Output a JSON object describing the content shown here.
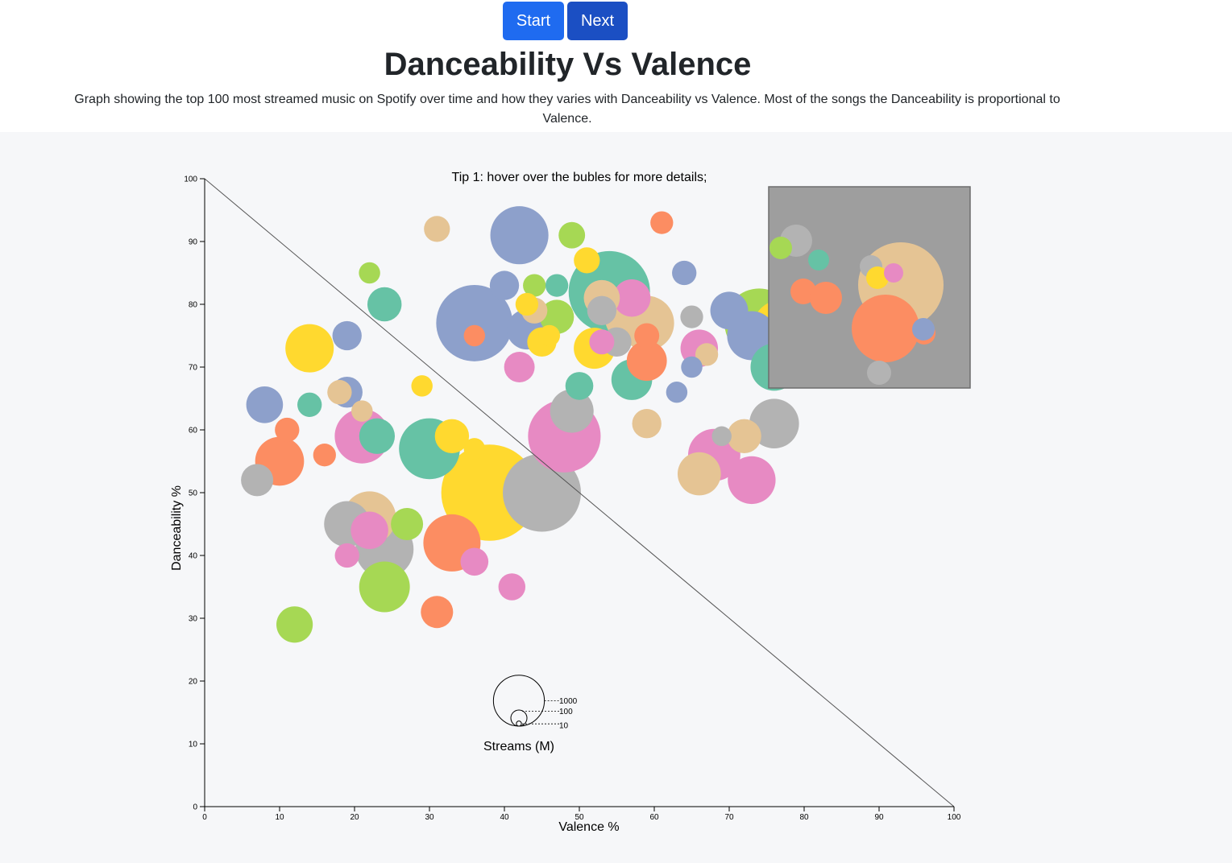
{
  "header": {
    "start_label": "Start",
    "next_label": "Next",
    "title": "Danceability Vs Valence",
    "description": "Graph showing the top 100 most streamed music on Spotify over time and how they varies with Danceability vs Valence. Most of the songs the Danceability is proportional to Valence."
  },
  "chart_data": {
    "type": "scatter",
    "tip": "Tip 1: hover over the bubles for more details;",
    "xlabel": "Valence %",
    "ylabel": "Danceability %",
    "xlim": [
      0,
      100
    ],
    "ylim": [
      0,
      100
    ],
    "x_ticks": [
      "0",
      "10",
      "20",
      "30",
      "40",
      "50",
      "60",
      "70",
      "80",
      "90",
      "100"
    ],
    "y_ticks": [
      "0",
      "10",
      "20",
      "30",
      "40",
      "50",
      "60",
      "70",
      "80",
      "90",
      "100"
    ],
    "size_legend": {
      "title": "Streams (M)",
      "values": [
        1000,
        100,
        10
      ]
    },
    "reference_line": {
      "from": [
        0,
        100
      ],
      "to": [
        100,
        0
      ]
    },
    "colors": [
      "#fc8d62",
      "#e78ac3",
      "#66c2a5",
      "#8da0cb",
      "#a6d854",
      "#ffd92f",
      "#e5c494",
      "#b3b3b3"
    ],
    "points": [
      {
        "x": 31,
        "y": 92,
        "streams": 260,
        "c": 6
      },
      {
        "x": 42,
        "y": 91,
        "streams": 1300,
        "c": 3
      },
      {
        "x": 49,
        "y": 91,
        "streams": 270,
        "c": 4
      },
      {
        "x": 61,
        "y": 93,
        "streams": 200,
        "c": 0
      },
      {
        "x": 22,
        "y": 85,
        "streams": 175,
        "c": 4
      },
      {
        "x": 51,
        "y": 87,
        "streams": 260,
        "c": 5
      },
      {
        "x": 24,
        "y": 80,
        "streams": 450,
        "c": 2
      },
      {
        "x": 40,
        "y": 83,
        "streams": 330,
        "c": 3
      },
      {
        "x": 44,
        "y": 83,
        "streams": 200,
        "c": 4
      },
      {
        "x": 47,
        "y": 83,
        "streams": 200,
        "c": 2
      },
      {
        "x": 64,
        "y": 85,
        "streams": 230,
        "c": 3
      },
      {
        "x": 54,
        "y": 82,
        "streams": 2550,
        "c": 2
      },
      {
        "x": 53,
        "y": 81,
        "streams": 500,
        "c": 6
      },
      {
        "x": 43,
        "y": 80,
        "streams": 200,
        "c": 5
      },
      {
        "x": 36,
        "y": 77,
        "streams": 2250,
        "c": 3
      },
      {
        "x": 43,
        "y": 76,
        "streams": 620,
        "c": 3
      },
      {
        "x": 47,
        "y": 78,
        "streams": 450,
        "c": 4
      },
      {
        "x": 44,
        "y": 79,
        "streams": 260,
        "c": 6
      },
      {
        "x": 53,
        "y": 79,
        "streams": 330,
        "c": 7
      },
      {
        "x": 59,
        "y": 77,
        "streams": 1150,
        "c": 6
      },
      {
        "x": 57,
        "y": 78,
        "streams": 1130,
        "c": 6
      },
      {
        "x": 57,
        "y": 81,
        "streams": 540,
        "c": 1
      },
      {
        "x": 65,
        "y": 78,
        "streams": 200,
        "c": 7
      },
      {
        "x": 70,
        "y": 79,
        "streams": 550,
        "c": 3
      },
      {
        "x": 73,
        "y": 75,
        "streams": 930,
        "c": 3
      },
      {
        "x": 74,
        "y": 77,
        "streams": 1850,
        "c": 4
      },
      {
        "x": 77,
        "y": 76,
        "streams": 1350,
        "c": 5
      },
      {
        "x": 19,
        "y": 75,
        "streams": 330,
        "c": 3
      },
      {
        "x": 14,
        "y": 73,
        "streams": 900,
        "c": 5
      },
      {
        "x": 36,
        "y": 75,
        "streams": 175,
        "c": 0
      },
      {
        "x": 45,
        "y": 74,
        "streams": 330,
        "c": 5
      },
      {
        "x": 46,
        "y": 75,
        "streams": 175,
        "c": 5
      },
      {
        "x": 52,
        "y": 73,
        "streams": 650,
        "c": 5
      },
      {
        "x": 53,
        "y": 74,
        "streams": 240,
        "c": 1
      },
      {
        "x": 55,
        "y": 74,
        "streams": 330,
        "c": 7
      },
      {
        "x": 59,
        "y": 75,
        "streams": 240,
        "c": 0
      },
      {
        "x": 59,
        "y": 71,
        "streams": 620,
        "c": 0
      },
      {
        "x": 66,
        "y": 73,
        "streams": 540,
        "c": 1
      },
      {
        "x": 67,
        "y": 72,
        "streams": 200,
        "c": 6
      },
      {
        "x": 65,
        "y": 70,
        "streams": 175,
        "c": 3
      },
      {
        "x": 76,
        "y": 70,
        "streams": 860,
        "c": 2
      },
      {
        "x": 42,
        "y": 70,
        "streams": 360,
        "c": 1
      },
      {
        "x": 57,
        "y": 68,
        "streams": 640,
        "c": 2
      },
      {
        "x": 29,
        "y": 67,
        "streams": 175,
        "c": 5
      },
      {
        "x": 50,
        "y": 67,
        "streams": 300,
        "c": 2
      },
      {
        "x": 19,
        "y": 66,
        "streams": 370,
        "c": 3
      },
      {
        "x": 18,
        "y": 66,
        "streams": 230,
        "c": 6
      },
      {
        "x": 63,
        "y": 66,
        "streams": 175,
        "c": 3
      },
      {
        "x": 8,
        "y": 64,
        "streams": 520,
        "c": 3
      },
      {
        "x": 14,
        "y": 64,
        "streams": 230,
        "c": 2
      },
      {
        "x": 21,
        "y": 63,
        "streams": 175,
        "c": 6
      },
      {
        "x": 49,
        "y": 63,
        "streams": 730,
        "c": 7
      },
      {
        "x": 59,
        "y": 61,
        "streams": 330,
        "c": 6
      },
      {
        "x": 76,
        "y": 61,
        "streams": 950,
        "c": 7
      },
      {
        "x": 11,
        "y": 60,
        "streams": 230,
        "c": 0
      },
      {
        "x": 21,
        "y": 59,
        "streams": 1150,
        "c": 1
      },
      {
        "x": 23,
        "y": 59,
        "streams": 490,
        "c": 2
      },
      {
        "x": 30,
        "y": 57,
        "streams": 1430,
        "c": 2
      },
      {
        "x": 33,
        "y": 59,
        "streams": 450,
        "c": 5
      },
      {
        "x": 36,
        "y": 57,
        "streams": 175,
        "c": 5
      },
      {
        "x": 48,
        "y": 59,
        "streams": 2030,
        "c": 1
      },
      {
        "x": 68,
        "y": 56,
        "streams": 1050,
        "c": 1
      },
      {
        "x": 69,
        "y": 59,
        "streams": 150,
        "c": 7
      },
      {
        "x": 72,
        "y": 59,
        "streams": 450,
        "c": 6
      },
      {
        "x": 10,
        "y": 55,
        "streams": 920,
        "c": 0
      },
      {
        "x": 16,
        "y": 56,
        "streams": 200,
        "c": 0
      },
      {
        "x": 7,
        "y": 52,
        "streams": 400,
        "c": 7
      },
      {
        "x": 38,
        "y": 50,
        "streams": 3570,
        "c": 5
      },
      {
        "x": 45,
        "y": 50,
        "streams": 2350,
        "c": 7
      },
      {
        "x": 66,
        "y": 53,
        "streams": 720,
        "c": 6
      },
      {
        "x": 73,
        "y": 52,
        "streams": 880,
        "c": 1
      },
      {
        "x": 22,
        "y": 46,
        "streams": 1080,
        "c": 6
      },
      {
        "x": 19,
        "y": 45,
        "streams": 810,
        "c": 7
      },
      {
        "x": 24,
        "y": 41,
        "streams": 1300,
        "c": 7
      },
      {
        "x": 22,
        "y": 44,
        "streams": 540,
        "c": 1
      },
      {
        "x": 27,
        "y": 45,
        "streams": 400,
        "c": 4
      },
      {
        "x": 33,
        "y": 42,
        "streams": 1260,
        "c": 0
      },
      {
        "x": 19,
        "y": 40,
        "streams": 230,
        "c": 1
      },
      {
        "x": 36,
        "y": 39,
        "streams": 300,
        "c": 1
      },
      {
        "x": 24,
        "y": 35,
        "streams": 990,
        "c": 4
      },
      {
        "x": 41,
        "y": 35,
        "streams": 280,
        "c": 1
      },
      {
        "x": 31,
        "y": 31,
        "streams": 400,
        "c": 0
      },
      {
        "x": 12,
        "y": 29,
        "streams": 510,
        "c": 4
      }
    ]
  },
  "inset": {
    "points": [
      {
        "x": 988,
        "y": 299,
        "r": 20,
        "c": 7
      },
      {
        "x": 969,
        "y": 308,
        "r": 14,
        "c": 4
      },
      {
        "x": 1016,
        "y": 323,
        "r": 13,
        "c": 2
      },
      {
        "x": 1118,
        "y": 354,
        "r": 53,
        "c": 6
      },
      {
        "x": 1081,
        "y": 331,
        "r": 14,
        "c": 7
      },
      {
        "x": 1089,
        "y": 345,
        "r": 14,
        "c": 5
      },
      {
        "x": 1109,
        "y": 339,
        "r": 12,
        "c": 1
      },
      {
        "x": 997,
        "y": 362,
        "r": 16,
        "c": 0
      },
      {
        "x": 1025,
        "y": 370,
        "r": 20,
        "c": 0
      },
      {
        "x": 1099,
        "y": 408,
        "r": 42,
        "c": 0
      },
      {
        "x": 1147,
        "y": 414,
        "r": 14,
        "c": 0
      },
      {
        "x": 1146,
        "y": 409,
        "r": 14,
        "c": 3
      },
      {
        "x": 1091,
        "y": 463,
        "r": 15,
        "c": 7
      }
    ]
  }
}
